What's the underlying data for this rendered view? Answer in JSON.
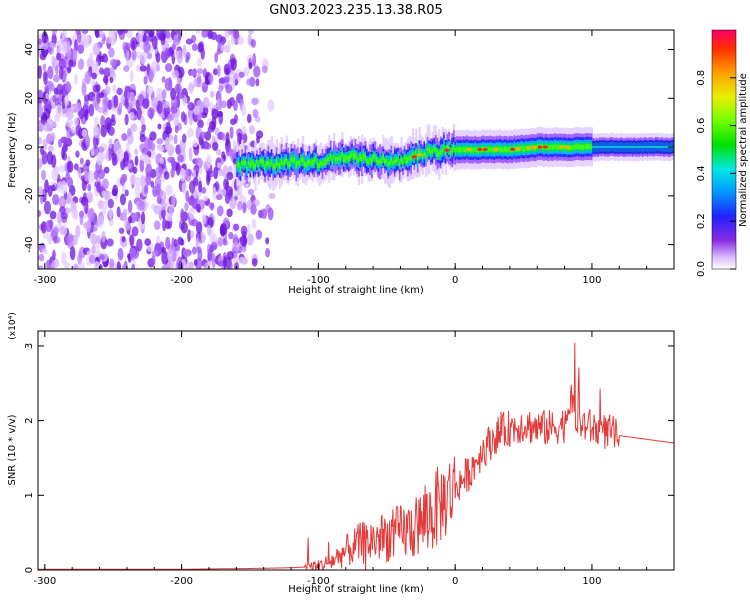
{
  "title": "GN03.2023.235.13.38.R05",
  "chart_data": [
    {
      "type": "heatmap",
      "xlabel": "Height of straight line (km)",
      "ylabel": "Frequency (Hz)",
      "xlim": [
        -305,
        160
      ],
      "ylim": [
        -50,
        48
      ],
      "xticks": [
        -300,
        -200,
        -100,
        0,
        100
      ],
      "yticks": [
        -40,
        -20,
        0,
        20,
        40
      ],
      "colorbar": {
        "label": "Normalized spectral amplitude",
        "range": [
          0,
          1
        ],
        "ticks": [
          0.0,
          0.2,
          0.4,
          0.6,
          0.8
        ],
        "colormap": "white-purple-blue-cyan-green-yellow-orange-red"
      },
      "noise_region_x": [
        -305,
        -130
      ],
      "signal_ridge": {
        "x": [
          -160,
          -140,
          -120,
          -100,
          -80,
          -60,
          -40,
          -20,
          0,
          20,
          40,
          60,
          80,
          100,
          120,
          160
        ],
        "frequency_hz": [
          -8,
          -7,
          -6,
          -6,
          -4,
          -5,
          -6,
          -2,
          -1,
          -1,
          -1,
          0,
          0,
          0,
          0,
          0
        ]
      }
    },
    {
      "type": "line",
      "xlabel": "Height of straight line (km)",
      "ylabel": "SNR (10 * v/v)",
      "y_multiplier": "(x10⁴)",
      "xlim": [
        -305,
        160
      ],
      "ylim": [
        0,
        3.2
      ],
      "xticks": [
        -300,
        -200,
        -100,
        0,
        100
      ],
      "yticks": [
        0,
        1,
        2,
        3
      ],
      "line_color": "#e33a3a",
      "series": [
        {
          "x": [
            -305,
            -250,
            -200,
            -150,
            -120,
            -100,
            -90,
            -80,
            -70,
            -60,
            -50,
            -40,
            -30,
            -20,
            -10,
            0,
            10,
            20,
            30,
            40,
            50,
            60,
            70,
            80,
            85,
            90,
            95,
            100,
            120,
            140,
            160
          ],
          "values": [
            0.01,
            0.01,
            0.01,
            0.02,
            0.03,
            0.05,
            0.12,
            0.25,
            0.35,
            0.4,
            0.45,
            0.5,
            0.55,
            0.7,
            0.9,
            1.1,
            1.3,
            1.6,
            1.8,
            1.9,
            1.95,
            1.9,
            1.9,
            1.95,
            2.4,
            1.9,
            1.95,
            1.9,
            1.8,
            1.75,
            1.7
          ]
        }
      ]
    }
  ]
}
